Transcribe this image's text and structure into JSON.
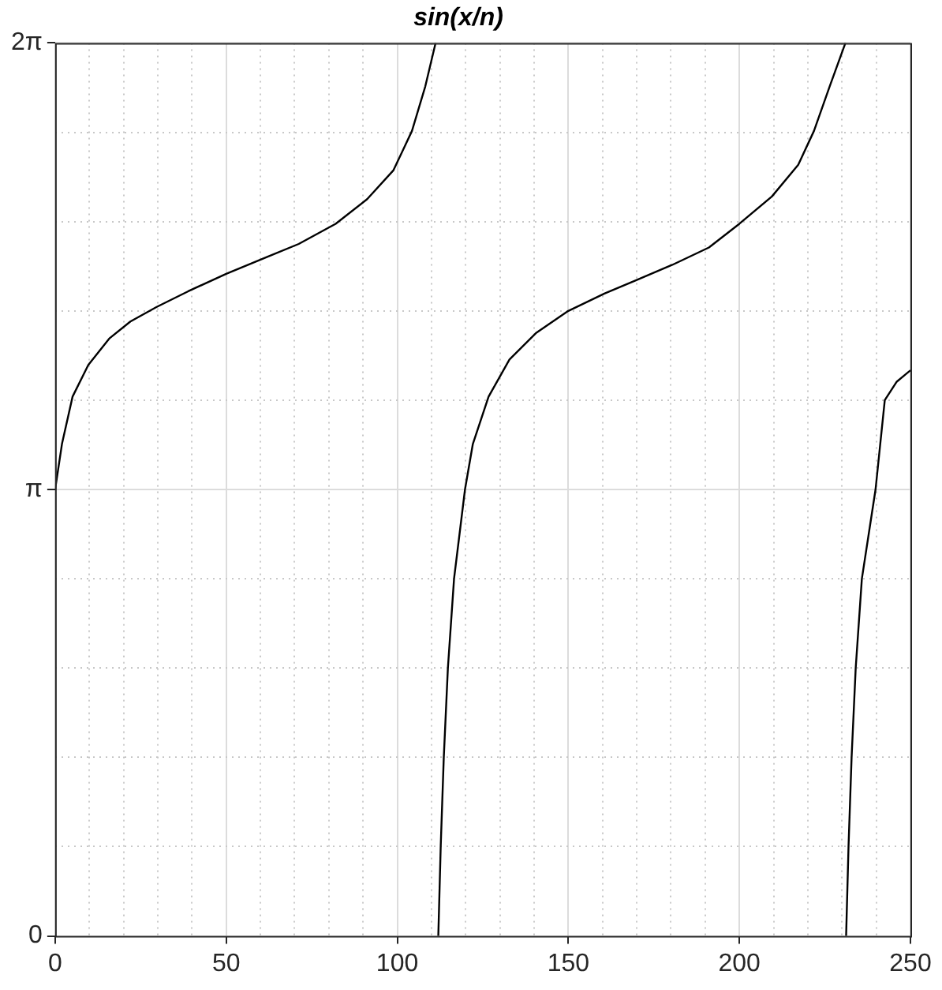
{
  "chart_data": {
    "type": "line",
    "title": "sin(x/n)",
    "xlim": [
      0,
      250
    ],
    "xticks": [
      0,
      {
        "value": 10,
        "label": null
      },
      {
        "value": 20,
        "label": null
      },
      {
        "value": 30,
        "label": null
      },
      {
        "value": 40,
        "label": null
      },
      50,
      {
        "value": 60,
        "label": null
      },
      {
        "value": 70,
        "label": null
      },
      {
        "value": 80,
        "label": null
      },
      {
        "value": 90,
        "label": null
      },
      100,
      {
        "value": 110,
        "label": null
      },
      {
        "value": 120,
        "label": null
      },
      {
        "value": 130,
        "label": null
      },
      {
        "value": 140,
        "label": null
      },
      150,
      {
        "value": 160,
        "label": null
      },
      {
        "value": 170,
        "label": null
      },
      {
        "value": 180,
        "label": null
      },
      {
        "value": 190,
        "label": null
      },
      200,
      {
        "value": 210,
        "label": null
      },
      {
        "value": 220,
        "label": null
      },
      {
        "value": 230,
        "label": null
      },
      {
        "value": 240,
        "label": null
      },
      250
    ],
    "ylim": [
      0,
      6.2832
    ],
    "yticks": [
      0,
      {
        "value": 0.6283,
        "label": null
      },
      {
        "value": 1.2566,
        "label": null
      },
      {
        "value": 1.885,
        "label": null
      },
      {
        "value": 2.5133,
        "label": null
      },
      {
        "value": 3.1416,
        "label": "π"
      },
      {
        "value": 3.7699,
        "label": null
      },
      {
        "value": 4.3982,
        "label": null
      },
      {
        "value": 5.0265,
        "label": null
      },
      {
        "value": 5.6549,
        "label": null
      },
      {
        "value": 6.2832,
        "label": "2π"
      }
    ],
    "grid": true,
    "legend": false,
    "marker": "none",
    "line_style": "solid",
    "series": [
      {
        "color": "#000000",
        "x": [
          0,
          2,
          5.1,
          9.7,
          15.8,
          22,
          29.7,
          38.9,
          50,
          62,
          71.2,
          82,
          91.2,
          98.9,
          104.3,
          108.2,
          111.2,
          111.6,
          112.0,
          112.7,
          113.6,
          114.8,
          116.6,
          119.8,
          122.1,
          126.7,
          132.8,
          140.5,
          150,
          160.4,
          169.6,
          180.4,
          191.1,
          200,
          209.5,
          217.2,
          221.8,
          226.4,
          231.0,
          231.1,
          231.2,
          231.9,
          232.8,
          234.0,
          235.8,
          239.8,
          242.5,
          246,
          250
        ],
        "values": [
          3.1416,
          3.462,
          3.795,
          4.018,
          4.203,
          4.323,
          4.426,
          4.536,
          4.659,
          4.778,
          4.869,
          5.011,
          5.184,
          5.388,
          5.664,
          5.978,
          6.283,
          null,
          0,
          0.628,
          1.257,
          1.885,
          2.513,
          3.1416,
          3.462,
          3.795,
          4.056,
          4.241,
          4.398,
          4.518,
          4.612,
          4.722,
          4.844,
          5.011,
          5.203,
          5.426,
          5.664,
          5.978,
          6.283,
          null,
          0,
          0.628,
          1.257,
          1.885,
          2.513,
          3.1416,
          3.77,
          3.9,
          3.98
        ]
      }
    ]
  }
}
